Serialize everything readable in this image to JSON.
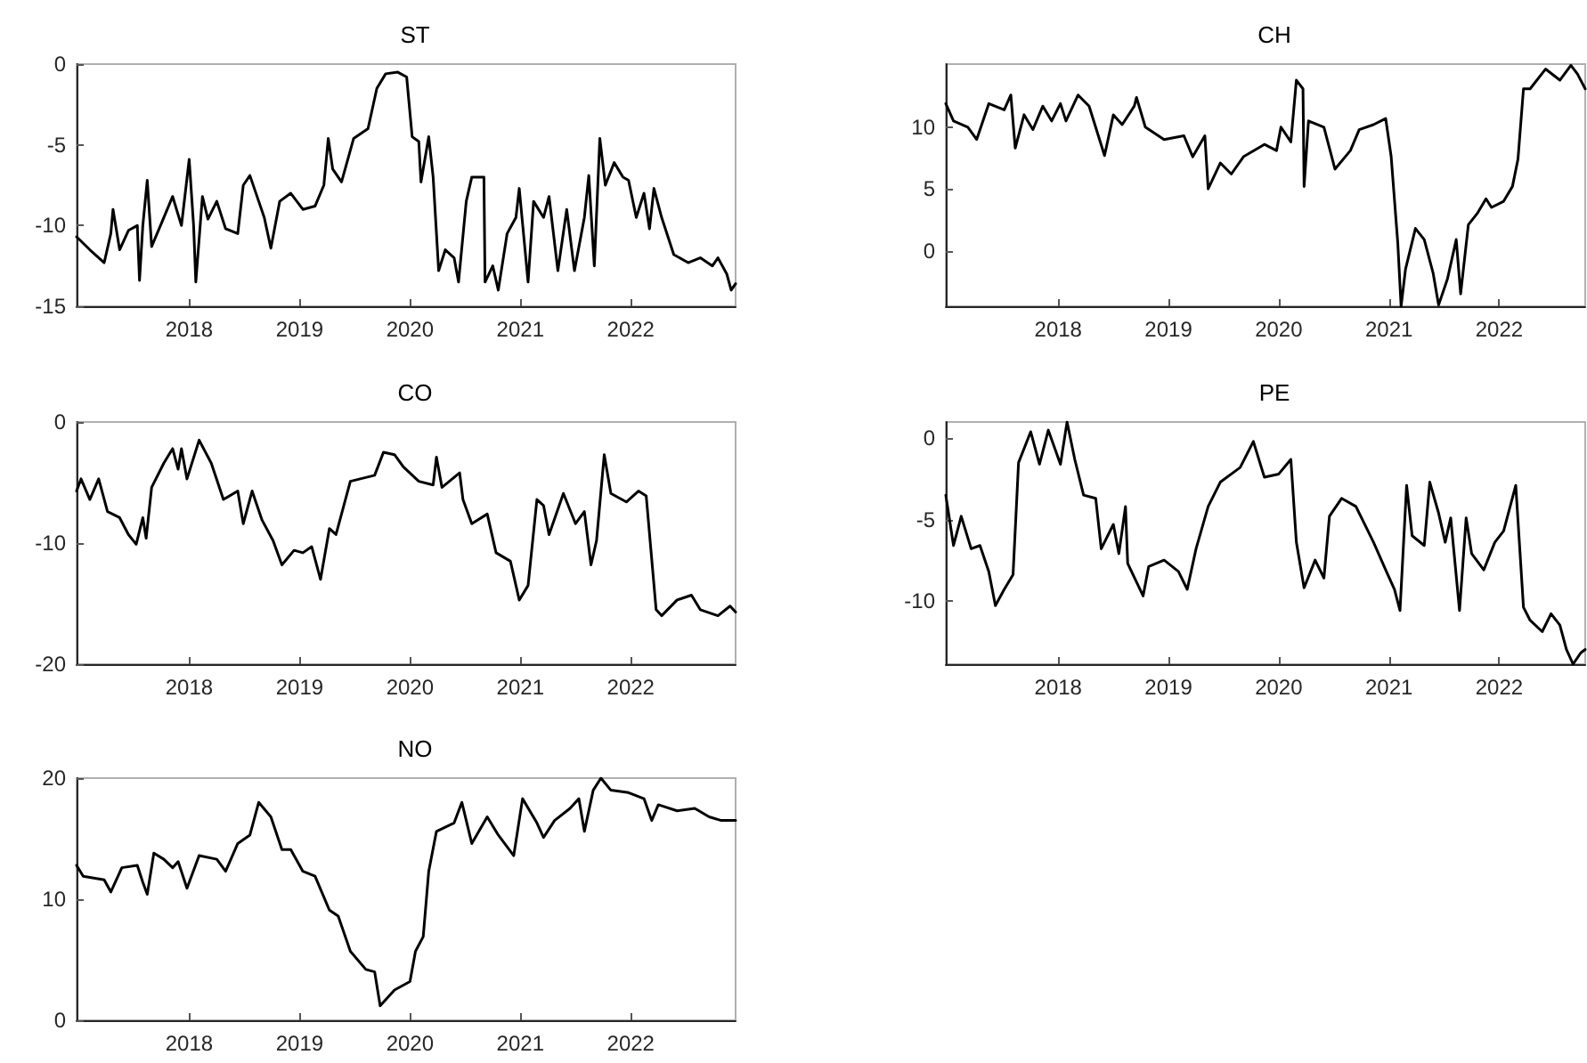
{
  "chart_data": [
    {
      "type": "line",
      "title": "ST",
      "color": "#000000",
      "marker": "none",
      "xlim": [
        2016.98,
        2022.95
      ],
      "xticks": [
        2018,
        2019,
        2020,
        2021,
        2022
      ],
      "ylim": [
        -15,
        0
      ],
      "yticks": [
        -15,
        -10,
        -5,
        0
      ],
      "x": [
        2016.98,
        2017.1,
        2017.23,
        2017.29,
        2017.31,
        2017.37,
        2017.45,
        2017.53,
        2017.55,
        2017.58,
        2017.62,
        2017.66,
        2017.74,
        2017.85,
        2017.93,
        2018.0,
        2018.04,
        2018.06,
        2018.12,
        2018.17,
        2018.25,
        2018.33,
        2018.44,
        2018.49,
        2018.55,
        2018.63,
        2018.68,
        2018.74,
        2018.82,
        2018.92,
        2019.03,
        2019.14,
        2019.22,
        2019.26,
        2019.3,
        2019.38,
        2019.49,
        2019.62,
        2019.7,
        2019.78,
        2019.89,
        2019.97,
        2020.02,
        2020.08,
        2020.1,
        2020.17,
        2020.21,
        2020.26,
        2020.32,
        2020.4,
        2020.44,
        2020.51,
        2020.56,
        2020.67,
        2020.68,
        2020.75,
        2020.8,
        2020.88,
        2020.96,
        2020.99,
        2021.07,
        2021.12,
        2021.21,
        2021.26,
        2021.34,
        2021.42,
        2021.49,
        2021.58,
        2021.62,
        2021.67,
        2021.72,
        2021.77,
        2021.85,
        2021.93,
        2021.98,
        2022.05,
        2022.12,
        2022.17,
        2022.21,
        2022.28,
        2022.39,
        2022.52,
        2022.63,
        2022.74,
        2022.79,
        2022.87,
        2022.91,
        2022.95
      ],
      "values": [
        -10.7,
        -11.5,
        -12.3,
        -10.5,
        -9,
        -11.5,
        -10.3,
        -10,
        -13.4,
        -10,
        -7.2,
        -11.3,
        -10,
        -8.2,
        -10,
        -5.9,
        -10,
        -13.5,
        -8.2,
        -9.6,
        -8.5,
        -10.2,
        -10.5,
        -7.5,
        -6.9,
        -8.5,
        -9.5,
        -11.4,
        -8.5,
        -8,
        -9,
        -8.8,
        -7.5,
        -4.6,
        -6.5,
        -7.3,
        -4.6,
        -4,
        -1.5,
        -0.6,
        -0.5,
        -0.8,
        -4.5,
        -4.8,
        -7.3,
        -4.5,
        -7,
        -12.8,
        -11.5,
        -12,
        -13.5,
        -8.5,
        -7,
        -7,
        -13.5,
        -12.5,
        -14,
        -10.5,
        -9.5,
        -7.7,
        -13.5,
        -8.5,
        -9.5,
        -8.2,
        -12.8,
        -9,
        -12.8,
        -9.5,
        -6.9,
        -12.5,
        -4.6,
        -7.5,
        -6.1,
        -7,
        -7.2,
        -9.5,
        -8,
        -10.2,
        -7.7,
        -9.5,
        -11.8,
        -12.3,
        -12,
        -12.5,
        -12,
        -13,
        -14,
        -13.6
      ]
    },
    {
      "type": "line",
      "title": "CH",
      "color": "#000000",
      "marker": "none",
      "xlim": [
        2016.98,
        2022.78
      ],
      "xticks": [
        2018,
        2019,
        2020,
        2021,
        2022
      ],
      "ylim": [
        -4.5,
        15.1
      ],
      "yticks": [
        0,
        5,
        10
      ],
      "x": [
        2016.98,
        2017.05,
        2017.18,
        2017.26,
        2017.37,
        2017.51,
        2017.57,
        2017.61,
        2017.69,
        2017.77,
        2017.86,
        2017.94,
        2018.02,
        2018.07,
        2018.18,
        2018.28,
        2018.42,
        2018.5,
        2018.58,
        2018.69,
        2018.71,
        2018.79,
        2018.96,
        2019.14,
        2019.22,
        2019.33,
        2019.36,
        2019.47,
        2019.57,
        2019.68,
        2019.87,
        2019.98,
        2020.02,
        2020.11,
        2020.16,
        2020.22,
        2020.23,
        2020.27,
        2020.41,
        2020.51,
        2020.65,
        2020.73,
        2020.86,
        2020.97,
        2021.02,
        2021.08,
        2021.11,
        2021.15,
        2021.24,
        2021.32,
        2021.4,
        2021.45,
        2021.53,
        2021.61,
        2021.65,
        2021.72,
        2021.8,
        2021.88,
        2021.93,
        2022.04,
        2022.12,
        2022.17,
        2022.22,
        2022.28,
        2022.42,
        2022.55,
        2022.65,
        2022.71,
        2022.78
      ],
      "values": [
        11.9,
        10.5,
        10,
        9,
        11.9,
        11.4,
        12.6,
        8.3,
        11,
        9.8,
        11.7,
        10.5,
        11.9,
        10.5,
        12.6,
        11.7,
        7.7,
        11,
        10.2,
        11.7,
        12.4,
        10,
        9,
        9.3,
        7.6,
        9.3,
        5,
        7.1,
        6.2,
        7.6,
        8.6,
        8.1,
        10,
        8.8,
        13.8,
        13.1,
        5.2,
        10.5,
        10,
        6.6,
        8.1,
        9.8,
        10.2,
        10.7,
        7.6,
        0.6,
        -4.5,
        -1.5,
        1.8,
        0.9,
        -1.8,
        -4.4,
        -2.3,
        0.9,
        -3.5,
        2.1,
        3,
        4.2,
        3.5,
        4,
        5.2,
        7.4,
        13.1,
        13.1,
        14.7,
        13.8,
        15,
        14.3,
        13.1
      ]
    },
    {
      "type": "line",
      "title": "CO",
      "color": "#000000",
      "marker": "none",
      "xlim": [
        2016.98,
        2022.95
      ],
      "xticks": [
        2018,
        2019,
        2020,
        2021,
        2022
      ],
      "ylim": [
        -20,
        0
      ],
      "yticks": [
        -20,
        -10,
        0
      ],
      "x": [
        2016.98,
        2017.02,
        2017.1,
        2017.18,
        2017.26,
        2017.37,
        2017.45,
        2017.52,
        2017.58,
        2017.61,
        2017.66,
        2017.77,
        2017.85,
        2017.9,
        2017.93,
        2017.98,
        2018.09,
        2018.2,
        2018.31,
        2018.44,
        2018.49,
        2018.57,
        2018.66,
        2018.76,
        2018.84,
        2018.95,
        2019.03,
        2019.11,
        2019.19,
        2019.27,
        2019.33,
        2019.46,
        2019.68,
        2019.76,
        2019.86,
        2019.94,
        2020.08,
        2020.21,
        2020.24,
        2020.29,
        2020.45,
        2020.48,
        2020.56,
        2020.7,
        2020.78,
        2020.91,
        2020.99,
        2021.07,
        2021.15,
        2021.21,
        2021.26,
        2021.39,
        2021.5,
        2021.58,
        2021.64,
        2021.69,
        2021.76,
        2021.82,
        2021.96,
        2022.07,
        2022.14,
        2022.23,
        2022.28,
        2022.42,
        2022.55,
        2022.63,
        2022.79,
        2022.9,
        2022.95
      ],
      "values": [
        -5.7,
        -4.7,
        -6.4,
        -4.7,
        -7.4,
        -7.9,
        -9.3,
        -10.1,
        -7.9,
        -9.6,
        -5.4,
        -3.4,
        -2.2,
        -3.9,
        -2.2,
        -4.7,
        -1.5,
        -3.4,
        -6.4,
        -5.7,
        -8.4,
        -5.7,
        -8.1,
        -9.8,
        -11.8,
        -10.6,
        -10.8,
        -10.3,
        -13,
        -8.8,
        -9.3,
        -4.9,
        -4.4,
        -2.5,
        -2.7,
        -3.7,
        -4.9,
        -5.2,
        -2.9,
        -5.4,
        -4.2,
        -6.4,
        -8.4,
        -7.6,
        -10.8,
        -11.5,
        -14.7,
        -13.5,
        -6.4,
        -6.9,
        -9.3,
        -5.9,
        -8.4,
        -7.4,
        -11.8,
        -9.8,
        -2.7,
        -5.9,
        -6.6,
        -5.7,
        -6.1,
        -15.5,
        -16,
        -14.7,
        -14.3,
        -15.5,
        -16,
        -15.2,
        -15.7
      ]
    },
    {
      "type": "line",
      "title": "PE",
      "color": "#000000",
      "marker": "none",
      "xlim": [
        2016.98,
        2022.78
      ],
      "xticks": [
        2018,
        2019,
        2020,
        2021,
        2022
      ],
      "ylim": [
        -13.9,
        1
      ],
      "yticks": [
        -10,
        -5,
        0
      ],
      "x": [
        2016.98,
        2017.05,
        2017.12,
        2017.21,
        2017.29,
        2017.37,
        2017.43,
        2017.51,
        2017.59,
        2017.64,
        2017.75,
        2017.83,
        2017.91,
        2018.02,
        2018.08,
        2018.15,
        2018.23,
        2018.34,
        2018.39,
        2018.5,
        2018.55,
        2018.61,
        2018.63,
        2018.77,
        2018.82,
        2018.96,
        2019.09,
        2019.17,
        2019.25,
        2019.36,
        2019.47,
        2019.65,
        2019.77,
        2019.87,
        2020.0,
        2020.11,
        2020.16,
        2020.23,
        2020.33,
        2020.41,
        2020.46,
        2020.57,
        2020.7,
        2020.86,
        2020.97,
        2021.05,
        2021.1,
        2021.16,
        2021.21,
        2021.32,
        2021.37,
        2021.45,
        2021.51,
        2021.56,
        2021.64,
        2021.7,
        2021.75,
        2021.86,
        2021.96,
        2022.04,
        2022.15,
        2022.22,
        2022.28,
        2022.39,
        2022.47,
        2022.55,
        2022.61,
        2022.67,
        2022.74,
        2022.78
      ],
      "values": [
        -3.5,
        -6.6,
        -4.8,
        -6.8,
        -6.6,
        -8.2,
        -10.3,
        -9.3,
        -8.4,
        -1.5,
        0.4,
        -1.6,
        0.5,
        -1.6,
        1,
        -1.3,
        -3.5,
        -3.7,
        -6.8,
        -5.3,
        -7.1,
        -4.2,
        -7.7,
        -9.7,
        -7.9,
        -7.5,
        -8.2,
        -9.3,
        -6.8,
        -4.2,
        -2.7,
        -1.8,
        -0.2,
        -2.4,
        -2.2,
        -1.3,
        -6.4,
        -9.2,
        -7.5,
        -8.6,
        -4.8,
        -3.7,
        -4.2,
        -6.4,
        -8.1,
        -9.3,
        -10.6,
        -2.9,
        -6,
        -6.6,
        -2.7,
        -4.6,
        -6.4,
        -4.9,
        -10.6,
        -4.9,
        -7.1,
        -8.1,
        -6.4,
        -5.7,
        -2.9,
        -10.4,
        -11.2,
        -11.9,
        -10.8,
        -11.5,
        -13,
        -13.9,
        -13.2,
        -13
      ]
    },
    {
      "type": "line",
      "title": "NO",
      "color": "#000000",
      "marker": "none",
      "xlim": [
        2016.98,
        2022.95
      ],
      "xticks": [
        2018,
        2019,
        2020,
        2021,
        2022
      ],
      "ylim": [
        0,
        20
      ],
      "yticks": [
        0,
        10,
        20
      ],
      "x": [
        2016.98,
        2017.04,
        2017.23,
        2017.29,
        2017.39,
        2017.53,
        2017.58,
        2017.62,
        2017.68,
        2017.77,
        2017.85,
        2017.9,
        2017.98,
        2018.09,
        2018.25,
        2018.33,
        2018.44,
        2018.55,
        2018.63,
        2018.74,
        2018.84,
        2018.92,
        2019.03,
        2019.14,
        2019.27,
        2019.35,
        2019.46,
        2019.6,
        2019.68,
        2019.73,
        2019.86,
        2020.0,
        2020.05,
        2020.12,
        2020.17,
        2020.24,
        2020.4,
        2020.47,
        2020.56,
        2020.7,
        2020.8,
        2020.94,
        2021.02,
        2021.15,
        2021.21,
        2021.31,
        2021.45,
        2021.53,
        2021.58,
        2021.66,
        2021.73,
        2021.82,
        2021.98,
        2022.12,
        2022.19,
        2022.25,
        2022.42,
        2022.58,
        2022.71,
        2022.82,
        2022.95
      ],
      "values": [
        12.8,
        11.9,
        11.6,
        10.6,
        12.6,
        12.8,
        11.4,
        10.4,
        13.8,
        13.3,
        12.6,
        13.1,
        10.9,
        13.6,
        13.3,
        12.3,
        14.6,
        15.3,
        18,
        16.8,
        14.1,
        14.1,
        12.3,
        11.9,
        9.1,
        8.6,
        5.7,
        4.2,
        4,
        1.2,
        2.5,
        3.2,
        5.7,
        6.9,
        12.3,
        15.6,
        16.3,
        18,
        14.6,
        16.8,
        15.3,
        13.6,
        18.3,
        16.3,
        15.1,
        16.5,
        17.5,
        18.3,
        15.6,
        19,
        20,
        19,
        18.8,
        18.3,
        16.5,
        17.8,
        17.3,
        17.5,
        16.8,
        16.5,
        16.5
      ]
    }
  ]
}
